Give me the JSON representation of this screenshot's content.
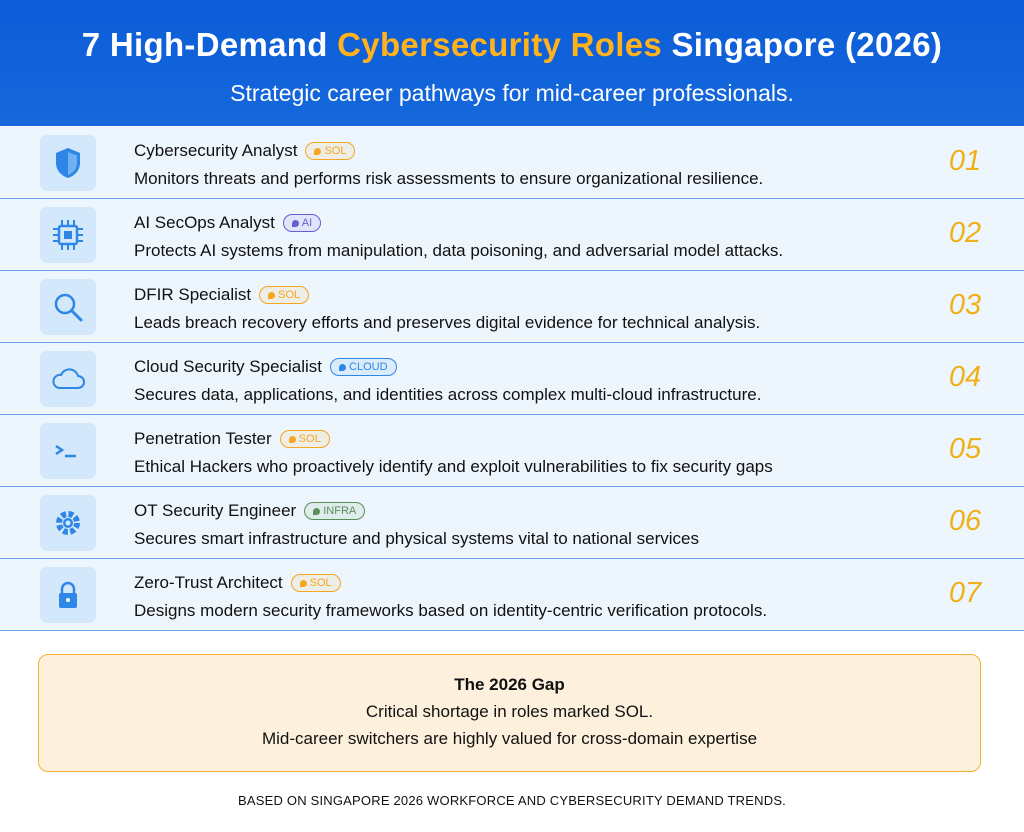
{
  "header": {
    "title_parts": [
      "7 High-Demand",
      "Cybersecurity Roles",
      "Singapore (2026)"
    ],
    "subtitle": "Strategic career pathways for mid-career professionals."
  },
  "roles": [
    {
      "title": "Cybersecurity Analyst",
      "badge": "SOL",
      "badge_color": "#f5a623",
      "description": "Monitors threats and performs risk assessments to ensure organizational resilience.",
      "number": "01"
    },
    {
      "title": "AI SecOps Analyst",
      "badge": "AI",
      "badge_color": "#6b5bd6",
      "description": "Protects AI systems from manipulation, data poisoning, and adversarial model attacks.",
      "number": "02"
    },
    {
      "title": "DFIR Specialist",
      "badge": "SOL",
      "badge_color": "#f5a623",
      "description": "Leads breach recovery efforts and preserves digital evidence for technical analysis.",
      "number": "03"
    },
    {
      "title": "Cloud Security Specialist",
      "badge": "CLOUD",
      "badge_color": "#2e86e6",
      "description": "Secures data, applications, and identities across complex multi-cloud infrastructure.",
      "number": "04"
    },
    {
      "title": "Penetration Tester",
      "badge": "SOL",
      "badge_color": "#f5a623",
      "description": "Ethical Hackers who proactively identify and exploit vulnerabilities to fix security gaps",
      "number": "05"
    },
    {
      "title": "OT Security Engineer",
      "badge": "INFRA",
      "badge_color": "#5a8f5a",
      "description": "Secures smart infrastructure and physical systems vital to national services",
      "number": "06"
    },
    {
      "title": "Zero-Trust Architect",
      "badge": "SOL",
      "badge_color": "#f5a623",
      "description": "Designs modern security frameworks based on identity-centric verification protocols.",
      "number": "07"
    }
  ],
  "gap": {
    "title": "The 2026 Gap",
    "lines": [
      "Critical shortage in roles marked SOL.",
      "Mid-career switchers are highly valued for cross-domain expertise"
    ]
  },
  "footer": "BASED ON SINGAPORE 2026 WORKFORCE AND CYBERSECURITY DEMAND TRENDS."
}
